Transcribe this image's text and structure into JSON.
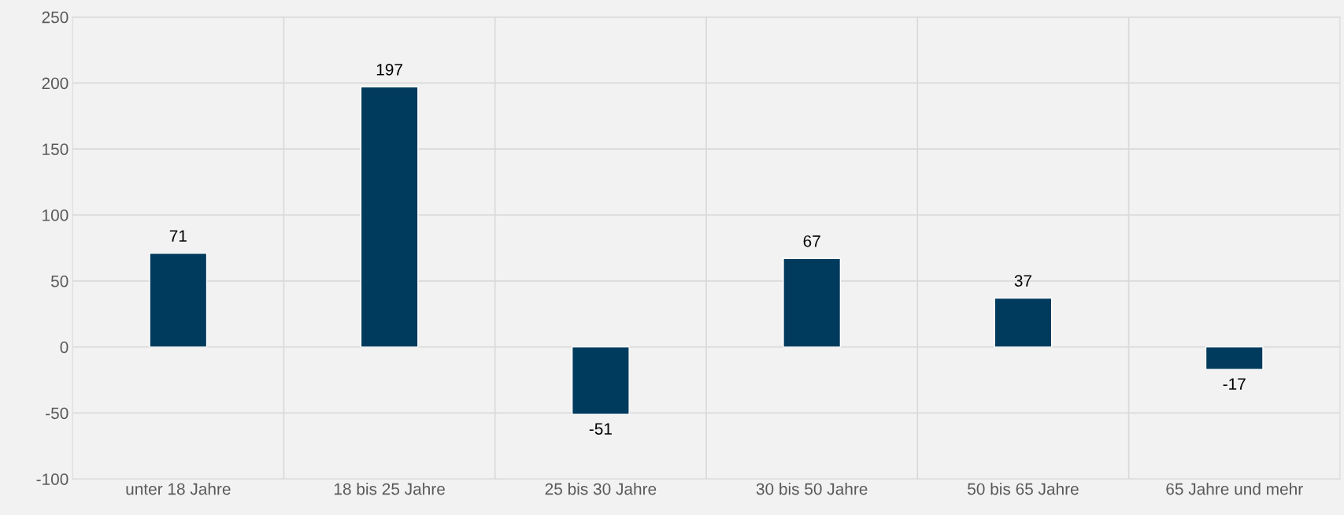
{
  "chart_data": {
    "type": "bar",
    "categories": [
      "unter 18 Jahre",
      "18 bis 25 Jahre",
      "25 bis 30 Jahre",
      "30 bis 50 Jahre",
      "50 bis 65 Jahre",
      "65 Jahre und mehr"
    ],
    "values": [
      71,
      197,
      -51,
      67,
      37,
      -17
    ],
    "color": "#003a5c",
    "ylim": [
      -100,
      250
    ],
    "yticks": [
      -100,
      -50,
      0,
      50,
      100,
      150,
      200,
      250
    ],
    "grid": true,
    "data_labels": true
  }
}
